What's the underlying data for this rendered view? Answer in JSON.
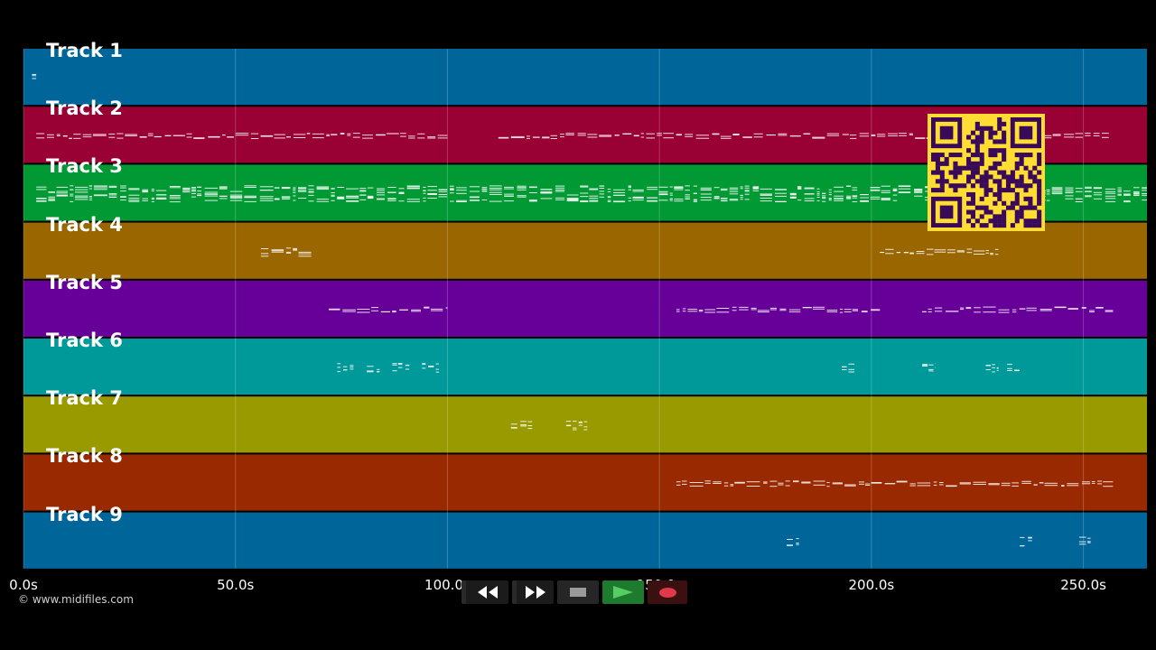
{
  "tracks": [
    {
      "label": "Track 1",
      "color": "#006699",
      "note_ranges": [
        [
          2,
          3
        ]
      ]
    },
    {
      "label": "Track 2",
      "color": "#990033",
      "note_ranges": [
        [
          3,
          100
        ],
        [
          112,
          256
        ]
      ]
    },
    {
      "label": "Track 3",
      "color": "#009933",
      "note_ranges": [
        [
          3,
          265
        ]
      ]
    },
    {
      "label": "Track 4",
      "color": "#996600",
      "note_ranges": [
        [
          56,
          68
        ],
        [
          202,
          230
        ]
      ]
    },
    {
      "label": "Track 5",
      "color": "#660099",
      "note_ranges": [
        [
          72,
          100
        ],
        [
          154,
          202
        ],
        [
          212,
          257
        ]
      ]
    },
    {
      "label": "Track 6",
      "color": "#009999",
      "note_ranges": [
        [
          74,
          78
        ],
        [
          81,
          84
        ],
        [
          87,
          91
        ],
        [
          94,
          98
        ],
        [
          193,
          196
        ],
        [
          212,
          215
        ],
        [
          227,
          230
        ],
        [
          232,
          235
        ]
      ]
    },
    {
      "label": "Track 7",
      "color": "#999900",
      "note_ranges": [
        [
          115,
          120
        ],
        [
          128,
          133
        ]
      ]
    },
    {
      "label": "Track 8",
      "color": "#992900",
      "note_ranges": [
        [
          154,
          257
        ]
      ]
    },
    {
      "label": "Track 9",
      "color": "#006699",
      "note_ranges": [
        [
          180,
          183
        ],
        [
          235,
          238
        ],
        [
          249,
          252
        ]
      ]
    }
  ],
  "timeline": {
    "max_seconds": 265,
    "ticks": [
      {
        "value": 0,
        "label": "0.0s"
      },
      {
        "value": 50,
        "label": "50.0s"
      },
      {
        "value": 100,
        "label": "100.0s"
      },
      {
        "value": 150,
        "label": "150.0s"
      },
      {
        "value": 200,
        "label": "200.0s"
      },
      {
        "value": 250,
        "label": "250.0s"
      }
    ]
  },
  "copyright": "© www.midifiles.com",
  "transport": {
    "rewind_icon": "rewind-icon",
    "ffwd_icon": "fast-forward-icon",
    "stop_icon": "stop-icon",
    "play_icon": "play-icon",
    "record_icon": "record-icon"
  },
  "qr": {
    "color_bg": "#ffdd33",
    "color_fg": "#3a0a5a"
  }
}
